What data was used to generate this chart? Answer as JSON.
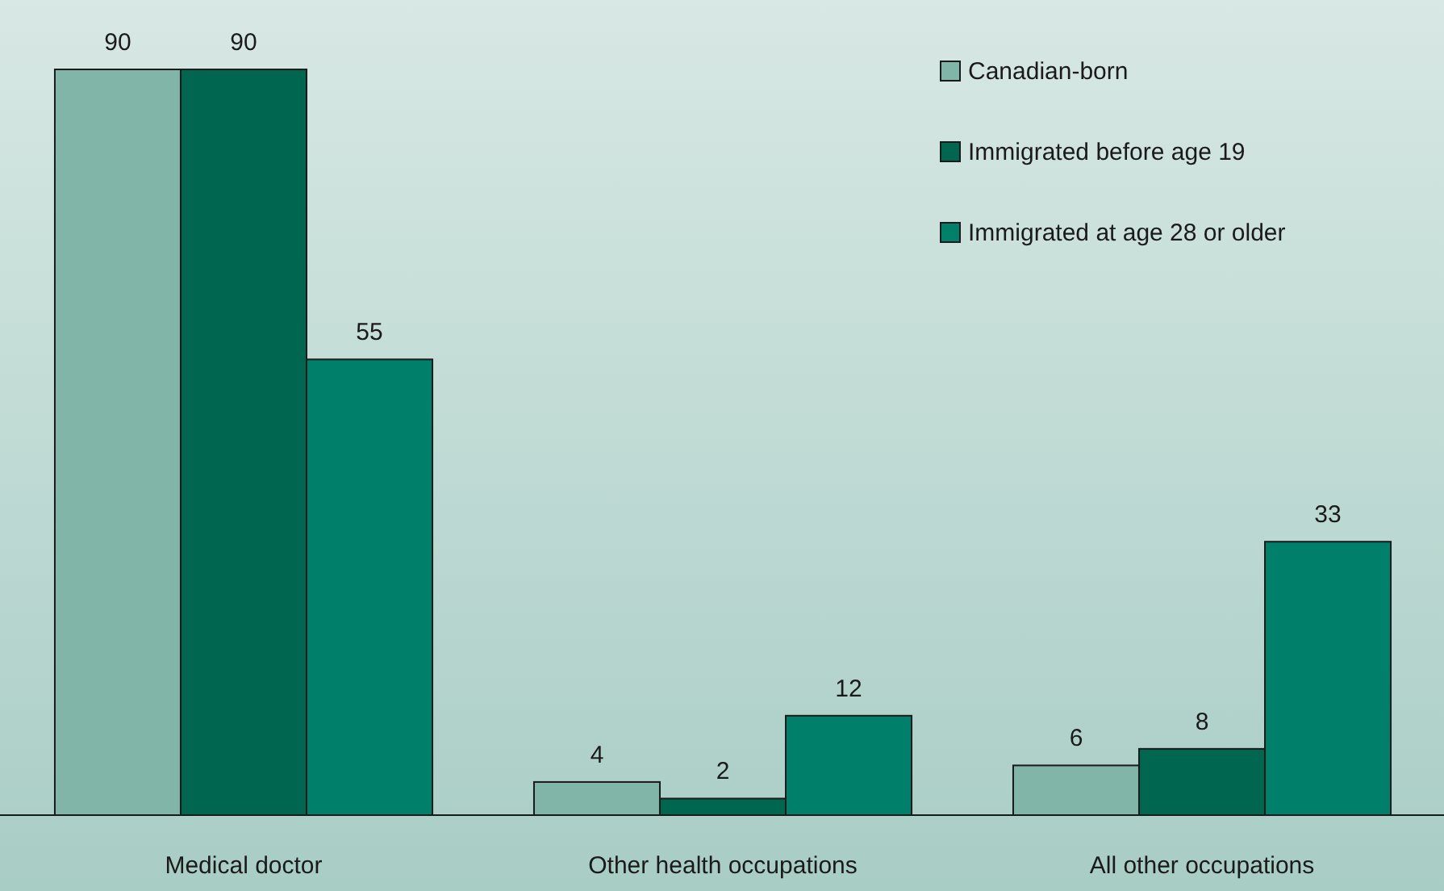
{
  "chart_data": {
    "type": "bar",
    "categories": [
      "Medical doctor",
      "Other health occupations",
      "All other occupations"
    ],
    "series": [
      {
        "name": "Canadian-born",
        "color": "#80b5a8",
        "values": [
          90,
          4,
          6
        ]
      },
      {
        "name": "Immigrated before age 19",
        "color": "#00664f",
        "values": [
          90,
          2,
          8
        ]
      },
      {
        "name": "Immigrated at age 28 or older",
        "color": "#00806a",
        "values": [
          55,
          12,
          33
        ]
      }
    ],
    "data_labels": true,
    "legend": "top right",
    "grid": false
  }
}
